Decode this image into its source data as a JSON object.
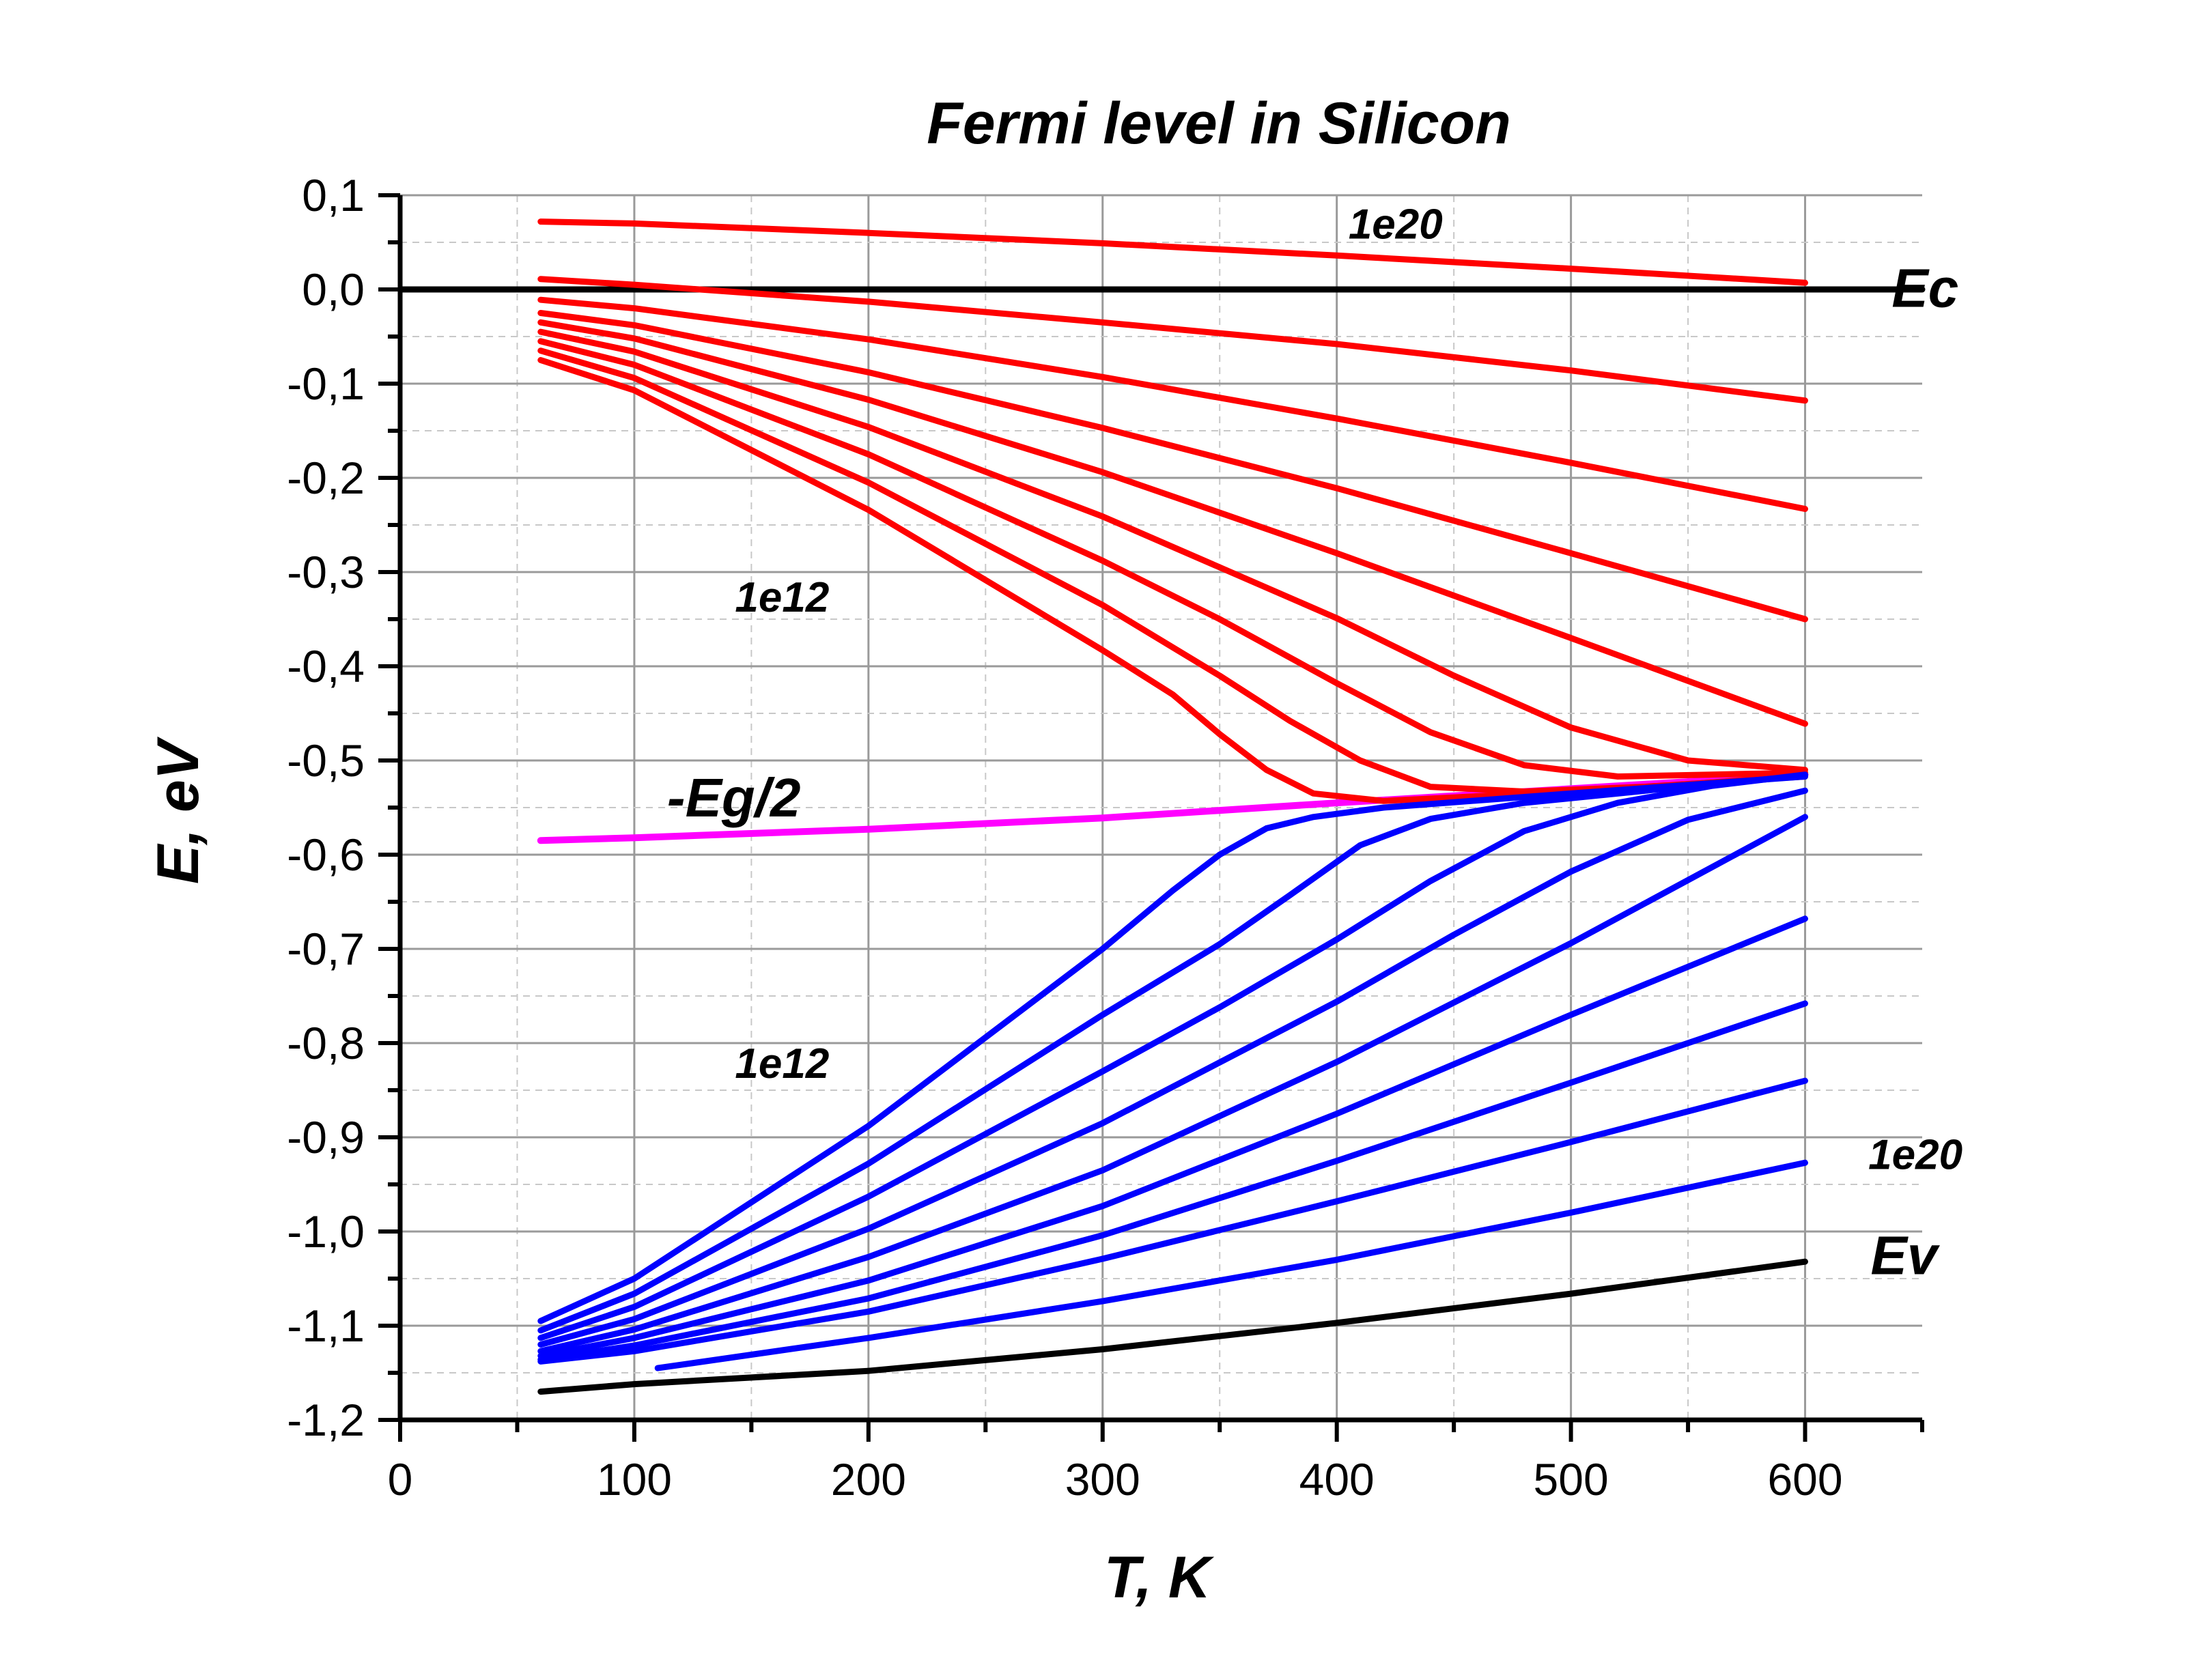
{
  "chart_data": {
    "type": "line",
    "title": "Fermi level in Silicon",
    "xlabel": "T, K",
    "ylabel": "E, eV",
    "xlim": [
      0,
      650
    ],
    "ylim": [
      -1.2,
      0.1
    ],
    "xticks": [
      0,
      100,
      200,
      300,
      400,
      500,
      600
    ],
    "xtick_labels": [
      "0",
      "100",
      "200",
      "300",
      "400",
      "500",
      "600"
    ],
    "yticks": [
      0.1,
      0.0,
      -0.1,
      -0.2,
      -0.3,
      -0.4,
      -0.5,
      -0.6,
      -0.7,
      -0.8,
      -0.9,
      -1.0,
      -1.1,
      -1.2
    ],
    "ytick_labels": [
      "0,1",
      "0,0",
      "-0,1",
      "-0,2",
      "-0,3",
      "-0,4",
      "-0,5",
      "-0,6",
      "-0,7",
      "-0,8",
      "-0,9",
      "-1,0",
      "-1,1",
      "-1,2"
    ],
    "grid": true,
    "colors": {
      "n_type": "#ff0000",
      "p_type": "#0000ff",
      "midgap": "#ff00ff",
      "band_edge": "#000000"
    },
    "annotations": [
      {
        "text": "1e20",
        "x": 405,
        "y": 0.066,
        "size": "small"
      },
      {
        "text": "1e12",
        "x": 143,
        "y": -0.33,
        "size": "small"
      },
      {
        "text": "1e12",
        "x": 143,
        "y": -0.825,
        "size": "small"
      },
      {
        "text": "1e20",
        "x": 627,
        "y": -0.922,
        "size": "small"
      },
      {
        "text": "Ec",
        "x": 637,
        "y": -0.003,
        "size": "big"
      },
      {
        "text": "Ev",
        "x": 628,
        "y": -1.03,
        "size": "big"
      },
      {
        "text": "-Eg/2",
        "x": 114,
        "y": -0.544,
        "size": "big"
      }
    ],
    "series": [
      {
        "kind": "band_edge",
        "x": [
          0,
          650
        ],
        "y": [
          0.0,
          0.0
        ]
      },
      {
        "kind": "band_edge",
        "x": [
          60,
          100,
          200,
          300,
          400,
          500,
          600
        ],
        "y": [
          -1.17,
          -1.162,
          -1.148,
          -1.125,
          -1.097,
          -1.066,
          -1.032
        ]
      },
      {
        "kind": "midgap",
        "x": [
          60,
          100,
          200,
          300,
          400,
          500,
          600
        ],
        "y": [
          -0.585,
          -0.582,
          -0.573,
          -0.561,
          -0.545,
          -0.53,
          -0.515
        ]
      },
      {
        "kind": "n_type",
        "x": [
          60,
          100,
          200,
          300,
          400,
          500,
          600
        ],
        "y": [
          0.072,
          0.07,
          0.06,
          0.049,
          0.036,
          0.022,
          0.007
        ]
      },
      {
        "kind": "n_type",
        "x": [
          60,
          100,
          200,
          300,
          400,
          500,
          600
        ],
        "y": [
          0.011,
          0.005,
          -0.013,
          -0.035,
          -0.058,
          -0.086,
          -0.118
        ]
      },
      {
        "kind": "n_type",
        "x": [
          60,
          100,
          200,
          300,
          400,
          500,
          600
        ],
        "y": [
          -0.011,
          -0.02,
          -0.053,
          -0.093,
          -0.137,
          -0.184,
          -0.233
        ]
      },
      {
        "kind": "n_type",
        "x": [
          60,
          100,
          200,
          300,
          400,
          500,
          600
        ],
        "y": [
          -0.025,
          -0.038,
          -0.088,
          -0.147,
          -0.211,
          -0.28,
          -0.35
        ]
      },
      {
        "kind": "n_type",
        "x": [
          60,
          100,
          200,
          300,
          400,
          500,
          600
        ],
        "y": [
          -0.035,
          -0.052,
          -0.117,
          -0.194,
          -0.28,
          -0.37,
          -0.461
        ]
      },
      {
        "kind": "n_type",
        "x": [
          60,
          100,
          200,
          300,
          400,
          450,
          500,
          550,
          600
        ],
        "y": [
          -0.045,
          -0.066,
          -0.146,
          -0.241,
          -0.349,
          -0.41,
          -0.465,
          -0.5,
          -0.51
        ]
      },
      {
        "kind": "n_type",
        "x": [
          60,
          100,
          200,
          300,
          350,
          400,
          440,
          480,
          520,
          560,
          600
        ],
        "y": [
          -0.055,
          -0.08,
          -0.175,
          -0.288,
          -0.35,
          -0.418,
          -0.47,
          -0.505,
          -0.517,
          -0.515,
          -0.513
        ]
      },
      {
        "kind": "n_type",
        "x": [
          60,
          100,
          200,
          300,
          350,
          380,
          410,
          440,
          480,
          540,
          600
        ],
        "y": [
          -0.065,
          -0.094,
          -0.205,
          -0.335,
          -0.41,
          -0.458,
          -0.5,
          -0.528,
          -0.533,
          -0.527,
          -0.516
        ]
      },
      {
        "kind": "n_type",
        "x": [
          60,
          100,
          200,
          300,
          330,
          350,
          370,
          390,
          420,
          500,
          600
        ],
        "y": [
          -0.075,
          -0.107,
          -0.234,
          -0.383,
          -0.43,
          -0.472,
          -0.51,
          -0.535,
          -0.543,
          -0.533,
          -0.517
        ]
      },
      {
        "kind": "p_type",
        "x": [
          60,
          100,
          200,
          300,
          330,
          350,
          370,
          390,
          420,
          500,
          600
        ],
        "y": [
          -1.095,
          -1.05,
          -0.888,
          -0.7,
          -0.638,
          -0.6,
          -0.572,
          -0.56,
          -0.55,
          -0.535,
          -0.517
        ]
      },
      {
        "kind": "p_type",
        "x": [
          60,
          100,
          200,
          300,
          350,
          380,
          410,
          440,
          480,
          540,
          600
        ],
        "y": [
          -1.105,
          -1.066,
          -0.928,
          -0.77,
          -0.695,
          -0.643,
          -0.59,
          -0.562,
          -0.545,
          -0.53,
          -0.516
        ]
      },
      {
        "kind": "p_type",
        "x": [
          60,
          100,
          200,
          300,
          350,
          400,
          440,
          480,
          520,
          560,
          600
        ],
        "y": [
          -1.113,
          -1.08,
          -0.963,
          -0.83,
          -0.762,
          -0.69,
          -0.628,
          -0.575,
          -0.545,
          -0.527,
          -0.515
        ]
      },
      {
        "kind": "p_type",
        "x": [
          60,
          100,
          200,
          300,
          400,
          450,
          500,
          550,
          600
        ],
        "y": [
          -1.12,
          -1.093,
          -0.997,
          -0.885,
          -0.756,
          -0.685,
          -0.618,
          -0.563,
          -0.532
        ]
      },
      {
        "kind": "p_type",
        "x": [
          60,
          100,
          200,
          300,
          400,
          500,
          600
        ],
        "y": [
          -1.127,
          -1.104,
          -1.027,
          -0.935,
          -0.82,
          -0.694,
          -0.56
        ]
      },
      {
        "kind": "p_type",
        "x": [
          60,
          100,
          200,
          300,
          400,
          500,
          600
        ],
        "y": [
          -1.132,
          -1.113,
          -1.052,
          -0.973,
          -0.875,
          -0.77,
          -0.668
        ]
      },
      {
        "kind": "p_type",
        "x": [
          60,
          100,
          200,
          300,
          400,
          500,
          600
        ],
        "y": [
          -1.136,
          -1.121,
          -1.071,
          -1.004,
          -0.925,
          -0.842,
          -0.758
        ]
      },
      {
        "kind": "p_type",
        "x": [
          60,
          100,
          200,
          300,
          400,
          500,
          600
        ],
        "y": [
          -1.138,
          -1.127,
          -1.085,
          -1.029,
          -0.968,
          -0.905,
          -0.84
        ]
      },
      {
        "kind": "p_type",
        "x": [
          110,
          200,
          300,
          400,
          500,
          600
        ],
        "y": [
          -1.145,
          -1.113,
          -1.074,
          -1.03,
          -0.98,
          -0.927
        ]
      }
    ]
  }
}
